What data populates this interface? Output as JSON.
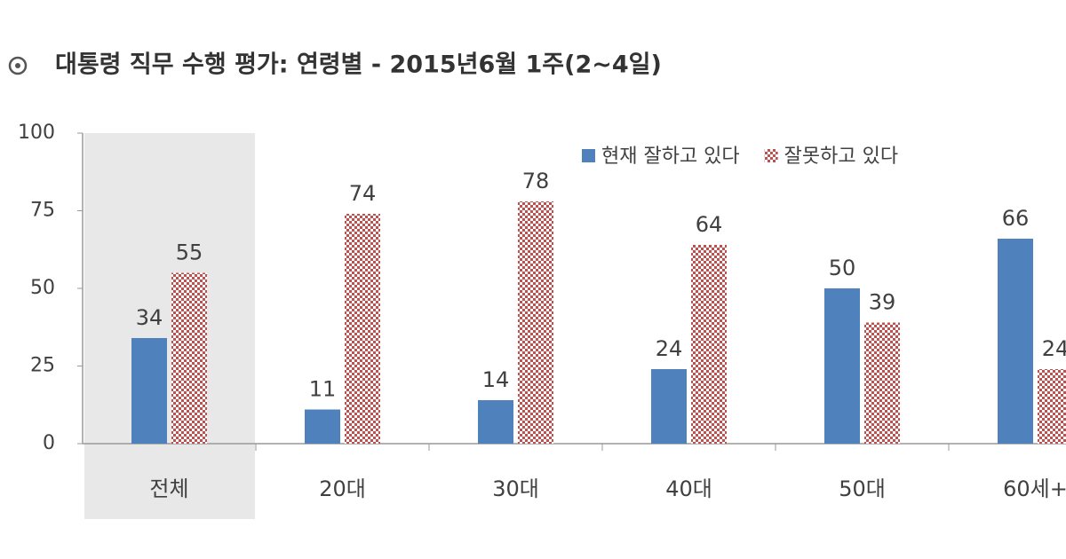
{
  "chart_data": {
    "type": "bar",
    "title": "대통령 직무 수행 평가: 연령별 - 2015년6월 1주(2~4일)",
    "categories": [
      "전체",
      "20대",
      "30대",
      "40대",
      "50대",
      "60세+"
    ],
    "series": [
      {
        "name": "현재 잘하고 있다",
        "color": "#4f81bd",
        "values": [
          34,
          11,
          14,
          24,
          50,
          66
        ]
      },
      {
        "name": "잘못하고 있다",
        "color": "#c0504d",
        "values": [
          55,
          74,
          78,
          64,
          39,
          24
        ]
      }
    ],
    "ylim": [
      0,
      100
    ],
    "yticks": [
      0,
      25,
      50,
      75,
      100
    ],
    "grid": false,
    "legend": "top-right"
  }
}
